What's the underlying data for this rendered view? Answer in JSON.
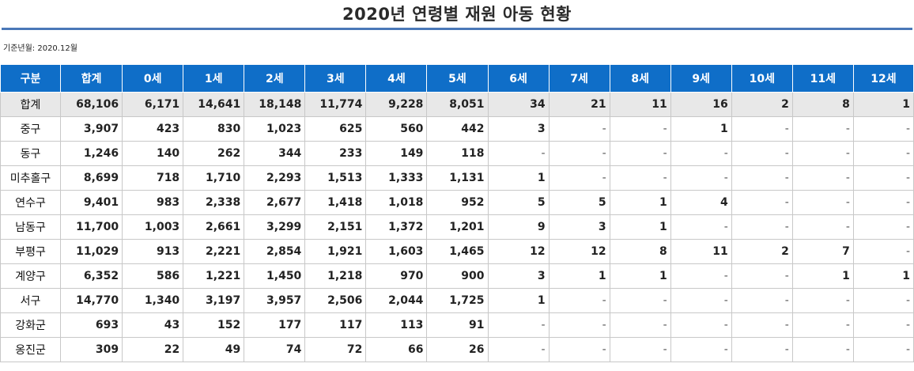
{
  "title": "2020년 연령별 재원 아동 현황",
  "ref_date": "기준년월: 2020.12월",
  "table": {
    "headers": [
      "구분",
      "합계",
      "0세",
      "1세",
      "2세",
      "3세",
      "4세",
      "5세",
      "6세",
      "7세",
      "8세",
      "9세",
      "10세",
      "11세",
      "12세"
    ],
    "rows": [
      [
        "합계",
        "68,106",
        "6,171",
        "14,641",
        "18,148",
        "11,774",
        "9,228",
        "8,051",
        "34",
        "21",
        "11",
        "16",
        "2",
        "8",
        "1"
      ],
      [
        "중구",
        "3,907",
        "423",
        "830",
        "1,023",
        "625",
        "560",
        "442",
        "3",
        "-",
        "-",
        "1",
        "-",
        "-",
        "-"
      ],
      [
        "동구",
        "1,246",
        "140",
        "262",
        "344",
        "233",
        "149",
        "118",
        "-",
        "-",
        "-",
        "-",
        "-",
        "-",
        "-"
      ],
      [
        "미추홀구",
        "8,699",
        "718",
        "1,710",
        "2,293",
        "1,513",
        "1,333",
        "1,131",
        "1",
        "-",
        "-",
        "-",
        "-",
        "-",
        "-"
      ],
      [
        "연수구",
        "9,401",
        "983",
        "2,338",
        "2,677",
        "1,418",
        "1,018",
        "952",
        "5",
        "5",
        "1",
        "4",
        "-",
        "-",
        "-"
      ],
      [
        "남동구",
        "11,700",
        "1,003",
        "2,661",
        "3,299",
        "2,151",
        "1,372",
        "1,201",
        "9",
        "3",
        "1",
        "-",
        "-",
        "-",
        "-"
      ],
      [
        "부평구",
        "11,029",
        "913",
        "2,221",
        "2,854",
        "1,921",
        "1,603",
        "1,465",
        "12",
        "12",
        "8",
        "11",
        "2",
        "7",
        "-"
      ],
      [
        "계양구",
        "6,352",
        "586",
        "1,221",
        "1,450",
        "1,218",
        "970",
        "900",
        "3",
        "1",
        "1",
        "-",
        "-",
        "1",
        "1"
      ],
      [
        "서구",
        "14,770",
        "1,340",
        "3,197",
        "3,957",
        "2,506",
        "2,044",
        "1,725",
        "1",
        "-",
        "-",
        "-",
        "-",
        "-",
        "-"
      ],
      [
        "강화군",
        "693",
        "43",
        "152",
        "177",
        "117",
        "113",
        "91",
        "-",
        "-",
        "-",
        "-",
        "-",
        "-",
        "-"
      ],
      [
        "옹진군",
        "309",
        "22",
        "49",
        "74",
        "72",
        "66",
        "26",
        "-",
        "-",
        "-",
        "-",
        "-",
        "-",
        "-"
      ]
    ]
  }
}
